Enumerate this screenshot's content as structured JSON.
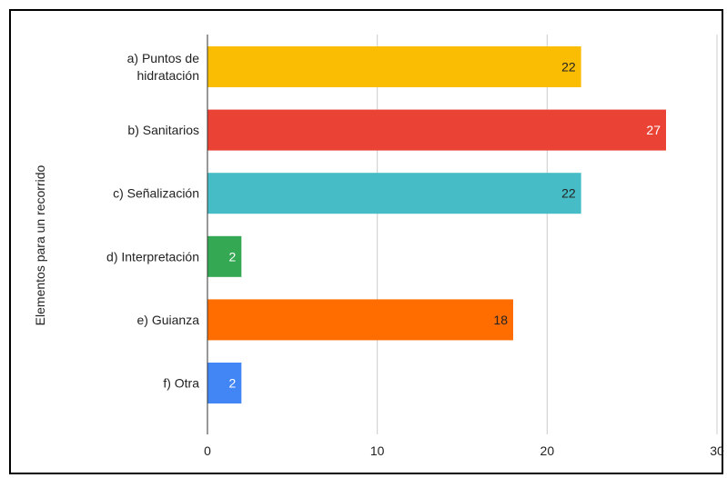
{
  "chart_data": {
    "type": "bar",
    "orientation": "horizontal",
    "categories": [
      [
        "a) Puntos de",
        "hidratación"
      ],
      [
        "b) Sanitarios"
      ],
      [
        "c) Señalización"
      ],
      [
        "d) Interpretación"
      ],
      [
        "e) Guianza"
      ],
      [
        "f) Otra"
      ]
    ],
    "values": [
      22,
      27,
      22,
      2,
      18,
      2
    ],
    "data_labels": [
      "22",
      "27",
      "22",
      "2",
      "18",
      "2"
    ],
    "colors": [
      "#fbbc04",
      "#ea4335",
      "#46bdc6",
      "#34a853",
      "#ff6d01",
      "#4285f4"
    ],
    "label_colors": [
      "#222222",
      "#ffffff",
      "#222222",
      "#ffffff",
      "#222222",
      "#ffffff"
    ],
    "title": "",
    "ylabel": "Elementos para un recorrido",
    "xlabel": "",
    "xlim": [
      0,
      30
    ],
    "xticks": [
      "0",
      "10",
      "20",
      "30"
    ],
    "grid": true,
    "legend": "none"
  }
}
